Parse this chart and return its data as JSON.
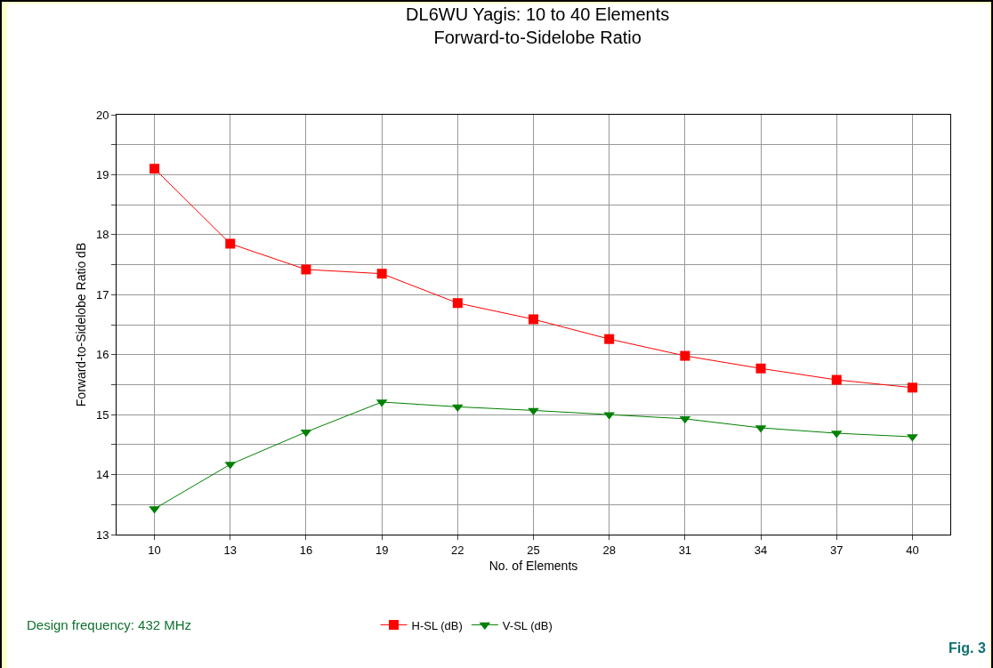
{
  "chart_data": {
    "type": "line",
    "title": "DL6WU Yagis: 10 to 40 Elements",
    "subtitle": "Forward-to-Sidelobe Ratio",
    "xlabel": "No. of Elements",
    "ylabel": "Forward-to-Sidelobe Ratio dB",
    "x": [
      10,
      13,
      16,
      19,
      22,
      25,
      28,
      31,
      34,
      37,
      40
    ],
    "series": [
      {
        "name": "H-SL (dB)",
        "color": "#ff0000",
        "marker": "square",
        "values": [
          19.1,
          17.85,
          17.42,
          17.35,
          16.86,
          16.59,
          16.26,
          15.98,
          15.77,
          15.58,
          15.45
        ]
      },
      {
        "name": "V-SL (dB)",
        "color": "#008000",
        "marker": "triangle",
        "values": [
          13.43,
          14.17,
          14.71,
          15.21,
          15.13,
          15.07,
          15.0,
          14.93,
          14.78,
          14.69,
          14.63
        ]
      }
    ],
    "xlim": [
      8.5,
      41.5
    ],
    "xticks": [
      10,
      13,
      16,
      19,
      22,
      25,
      28,
      31,
      34,
      37,
      40
    ],
    "ylim": [
      13,
      20
    ],
    "yticks": [
      13,
      {
        "value": 13.5,
        "label": null
      },
      14,
      {
        "value": 14.5,
        "label": null
      },
      15,
      {
        "value": 15.5,
        "label": null
      },
      16,
      {
        "value": 16.5,
        "label": null
      },
      17,
      {
        "value": 17.5,
        "label": null
      },
      18,
      {
        "value": 18.5,
        "label": null
      },
      19,
      {
        "value": 19.5,
        "label": null
      },
      20
    ],
    "grid": true,
    "legend": "bottom",
    "line_style": "solid",
    "annotations": [
      "Design frequency: 432 MHz",
      "Fig. 3"
    ]
  }
}
